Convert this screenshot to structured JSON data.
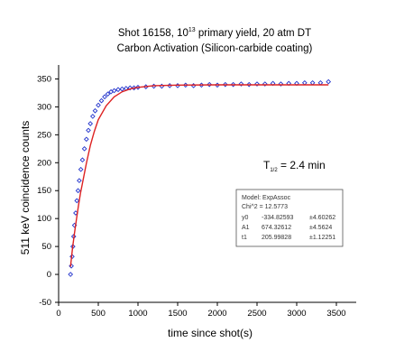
{
  "chart_data": {
    "type": "scatter",
    "title_line1_prefix": "Shot 16158, 10",
    "title_line1_sup": "13",
    "title_line1_suffix": " primary yield, 20 atm DT",
    "title_line2": "Carbon Activation (Silicon-carbide coating)",
    "xlabel": "time since shot(s)",
    "ylabel": "511 keV coincidence counts",
    "xlim": [
      0,
      3750
    ],
    "ylim": [
      -50,
      375
    ],
    "xticks": [
      0,
      500,
      1000,
      1500,
      2000,
      2500,
      3000,
      3500
    ],
    "yticks": [
      -50,
      0,
      50,
      100,
      150,
      200,
      250,
      300,
      350
    ],
    "grid": false,
    "colors": {
      "data": "#2233cc",
      "fit": "#dd2222"
    },
    "half_life": {
      "prefix": "T",
      "sub": "1/2",
      "suffix": " = 2.4 min"
    },
    "fit_box": {
      "model": "Model: ExpAssoc",
      "chi2": "Chi^2 = 12.5773",
      "params": [
        {
          "name": "y0",
          "value": "-334.82593",
          "error": "±4.60262"
        },
        {
          "name": "A1",
          "value": "674.32612",
          "error": "±4.5624"
        },
        {
          "name": "t1",
          "value": "205.99828",
          "error": "±1.12251"
        }
      ]
    },
    "series": [
      {
        "type": "scatter",
        "x": [
          150,
          160,
          170,
          180,
          190,
          200,
          215,
          230,
          245,
          260,
          280,
          300,
          325,
          350,
          375,
          400,
          430,
          460,
          500,
          540,
          580,
          620,
          660,
          700,
          750,
          800,
          850,
          900,
          950,
          1000,
          1100,
          1200,
          1300,
          1400,
          1500,
          1600,
          1700,
          1800,
          1900,
          2000,
          2100,
          2200,
          2300,
          2400,
          2500,
          2600,
          2700,
          2800,
          2900,
          3000,
          3100,
          3200,
          3300,
          3400
        ],
        "y": [
          0,
          15,
          32,
          50,
          68,
          88,
          110,
          132,
          150,
          168,
          188,
          205,
          225,
          242,
          258,
          270,
          283,
          293,
          303,
          311,
          318,
          323,
          327,
          329,
          331,
          332,
          333,
          334,
          334,
          335,
          336,
          337,
          337,
          338,
          338,
          339,
          338,
          339,
          340,
          339,
          340,
          340,
          341,
          340,
          341,
          341,
          342,
          341,
          342,
          342,
          343,
          343,
          343,
          345
        ]
      },
      {
        "type": "line",
        "x": [
          150,
          175,
          200,
          225,
          250,
          275,
          300,
          350,
          400,
          450,
          500,
          600,
          700,
          800,
          900,
          1000,
          1200,
          1500,
          2000,
          2500,
          3000,
          3400
        ],
        "y": [
          14,
          47,
          74,
          99,
          123,
          145,
          163,
          199,
          231,
          256,
          277,
          302,
          318,
          327,
          332,
          335,
          338,
          339,
          339.5,
          339.5,
          339.5,
          339.5
        ]
      }
    ]
  }
}
